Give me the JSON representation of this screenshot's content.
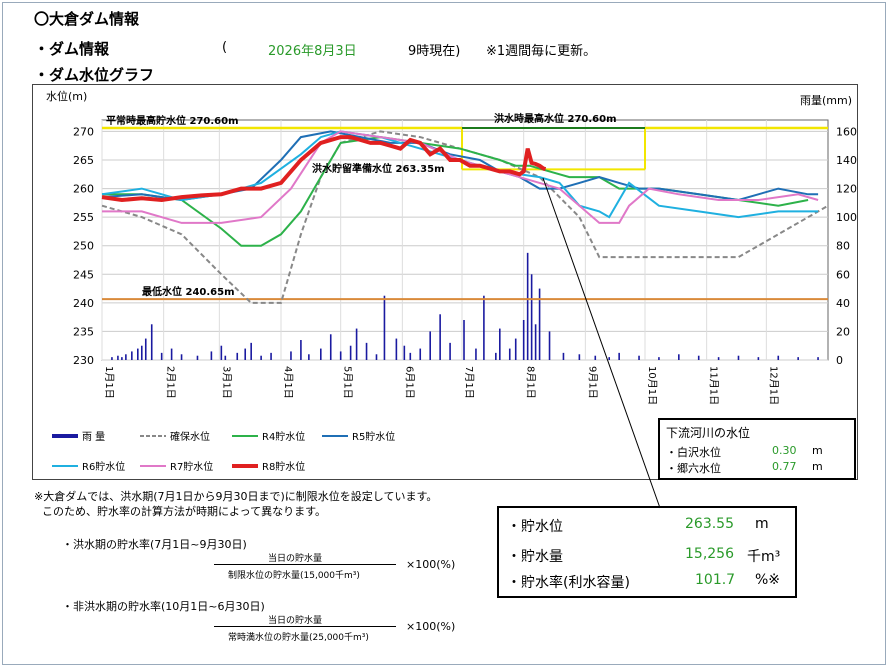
{
  "header": {
    "title": "〇大倉ダム情報",
    "info_label": "・ダム情報",
    "paren_open": "(",
    "date": "2026年8月3日",
    "time": "9時現在)",
    "note": "※1週間毎に更新。",
    "graph_label": "・ダム水位グラフ"
  },
  "chart_data": {
    "type": "line",
    "ylabel": "水位(m)",
    "y2label": "雨量(mm)",
    "ylim": [
      230,
      272
    ],
    "y2lim": [
      0,
      168
    ],
    "yticks": [
      "230",
      "235",
      "240",
      "245",
      "250",
      "255",
      "260",
      "265",
      "270"
    ],
    "y2ticks": [
      "0",
      "20",
      "40",
      "60",
      "80",
      "100",
      "120",
      "140",
      "160"
    ],
    "months": [
      "1月1日",
      "2月1日",
      "3月1日",
      "4月1日",
      "5月1日",
      "6月1日",
      "7月1日",
      "8月1日",
      "9月1日",
      "10月1日",
      "11月1日",
      "12月1日"
    ],
    "annotations": {
      "normal_high": "平常時最高貯水位 270.60m",
      "flood_high": "洪水時最高水位 270.60m",
      "flood_reserve": "洪水貯留準備水位 263.35m",
      "min_level": "最低水位 240.65m"
    },
    "series": [
      {
        "name": "確保水位",
        "color": "#888888",
        "dash": true,
        "x": [
          0,
          20,
          40,
          60,
          75,
          90,
          100,
          110,
          120,
          140,
          160,
          200,
          220,
          240,
          250,
          260,
          280,
          300,
          320,
          340,
          365
        ],
        "y": [
          257,
          255,
          252,
          245,
          240,
          240,
          252,
          262,
          268,
          270,
          269,
          265,
          262,
          255,
          248,
          248,
          248,
          248,
          248,
          252,
          257
        ]
      },
      {
        "name": "R4貯水位",
        "color": "#2db24a",
        "x": [
          0,
          20,
          40,
          60,
          70,
          80,
          90,
          100,
          110,
          120,
          140,
          160,
          180,
          200,
          208,
          215,
          225,
          235,
          250,
          260,
          280,
          300,
          320,
          340,
          355
        ],
        "y": [
          259,
          259,
          258,
          253,
          250,
          250,
          252,
          256,
          262,
          268,
          269,
          268,
          267,
          265,
          264,
          264,
          263,
          262,
          262,
          260,
          260,
          259,
          258,
          257,
          258
        ]
      },
      {
        "name": "R5貯水位",
        "color": "#1f6fb5",
        "x": [
          0,
          20,
          40,
          60,
          75,
          90,
          100,
          115,
          130,
          145,
          160,
          175,
          190,
          200,
          210,
          220,
          230,
          240,
          250,
          260,
          270,
          280,
          300,
          320,
          340,
          355,
          360
        ],
        "y": [
          258.5,
          259,
          258,
          259,
          260,
          265,
          269,
          270,
          269,
          268,
          268,
          266,
          265,
          263,
          262,
          260,
          260,
          261,
          262,
          261,
          260,
          260,
          259,
          258,
          260,
          259,
          259
        ]
      },
      {
        "name": "R6貯水位",
        "color": "#1fb0e0",
        "x": [
          0,
          20,
          40,
          60,
          80,
          100,
          110,
          120,
          140,
          160,
          180,
          200,
          220,
          230,
          240,
          250,
          255,
          265,
          280,
          300,
          320,
          340,
          360
        ],
        "y": [
          259,
          260,
          258,
          259,
          261,
          266,
          269,
          270,
          269,
          267,
          265,
          263,
          262,
          261,
          257,
          256,
          255,
          261,
          257,
          256,
          255,
          256,
          256
        ]
      },
      {
        "name": "R7貯水位",
        "color": "#e078c8",
        "x": [
          0,
          20,
          40,
          60,
          80,
          95,
          110,
          120,
          140,
          160,
          180,
          200,
          220,
          230,
          240,
          250,
          260,
          265,
          275,
          290,
          310,
          330,
          350,
          360
        ],
        "y": [
          256,
          256,
          254,
          254,
          255,
          260,
          268,
          270,
          269,
          268,
          265,
          263,
          261,
          260,
          257,
          254,
          254,
          257,
          260,
          259,
          258,
          258,
          259,
          258
        ]
      },
      {
        "name": "R8貯水位",
        "color": "#e02020",
        "thick": true,
        "x": [
          0,
          10,
          20,
          30,
          40,
          50,
          60,
          70,
          80,
          90,
          100,
          110,
          120,
          125,
          130,
          135,
          140,
          145,
          150,
          155,
          160,
          165,
          170,
          175,
          180,
          185,
          190,
          195,
          200,
          205,
          210,
          212,
          214,
          216,
          218,
          220,
          222,
          223
        ],
        "y": [
          258.5,
          258,
          258.3,
          258,
          258.5,
          258.8,
          259,
          260,
          260,
          261,
          265,
          268,
          269,
          269,
          268.5,
          268,
          268,
          267.5,
          267,
          268.5,
          268,
          266,
          267,
          265,
          265,
          264,
          264,
          263.5,
          263,
          263,
          262.5,
          263,
          267,
          264.5,
          264.3,
          264,
          263.5,
          263.4
        ]
      }
    ],
    "rain": {
      "name": "雨量",
      "color": "#1a1aa0",
      "x": [
        5,
        8,
        10,
        12,
        15,
        18,
        20,
        22,
        25,
        30,
        35,
        40,
        48,
        55,
        60,
        62,
        68,
        72,
        75,
        80,
        85,
        95,
        100,
        104,
        110,
        115,
        120,
        125,
        128,
        133,
        138,
        142,
        148,
        152,
        155,
        160,
        165,
        170,
        175,
        182,
        188,
        192,
        198,
        200,
        205,
        208,
        212,
        214,
        216,
        218,
        220,
        225,
        232,
        240,
        248,
        255,
        260,
        270,
        280,
        290,
        300,
        310,
        320,
        330,
        340,
        350,
        360
      ],
      "y": [
        2,
        3,
        2,
        4,
        6,
        8,
        10,
        15,
        25,
        5,
        8,
        4,
        3,
        6,
        10,
        3,
        5,
        8,
        12,
        3,
        5,
        6,
        14,
        4,
        8,
        18,
        6,
        10,
        22,
        12,
        4,
        45,
        15,
        10,
        5,
        8,
        20,
        32,
        12,
        28,
        8,
        45,
        5,
        22,
        8,
        15,
        28,
        75,
        60,
        25,
        50,
        20,
        5,
        4,
        3,
        2,
        5,
        3,
        2,
        4,
        3,
        2,
        3,
        2,
        3,
        2,
        2
      ]
    },
    "legend": [
      "雨 量",
      "確保水位",
      "R4貯水位",
      "R5貯水位",
      "R6貯水位",
      "R7貯水位",
      "R8貯水位"
    ]
  },
  "river_box": {
    "title": "下流河川の水位",
    "rows": [
      {
        "label": "・白沢水位",
        "value": "0.30",
        "unit": "m"
      },
      {
        "label": "・郷六水位",
        "value": "0.77",
        "unit": "m"
      }
    ]
  },
  "storage_box": {
    "rows": [
      {
        "label": "・貯水位",
        "value": "263.55",
        "unit": "m"
      },
      {
        "label": "・貯水量",
        "value": "15,256",
        "unit": "千m³"
      },
      {
        "label": "・貯水率(利水容量)",
        "value": "101.7",
        "unit": "%※"
      }
    ]
  },
  "notes": {
    "line1": "※大倉ダムでは、洪水期(7月1日から9月30日まで)に制限水位を設定しています。",
    "line2": "このため、貯水率の計算方法が時期によって異なります。",
    "flood_title": "・洪水期の貯水率(7月1日~9月30日)",
    "flood_num": "当日の貯水量",
    "flood_den": "制限水位の貯水量(15,000千m³)",
    "flood_mul": "×100(%)",
    "nonflood_title": "・非洪水期の貯水率(10月1日~6月30日)",
    "nonflood_num": "当日の貯水量",
    "nonflood_den": "常時満水位の貯水量(25,000千m³)",
    "nonflood_mul": "×100(%)"
  }
}
